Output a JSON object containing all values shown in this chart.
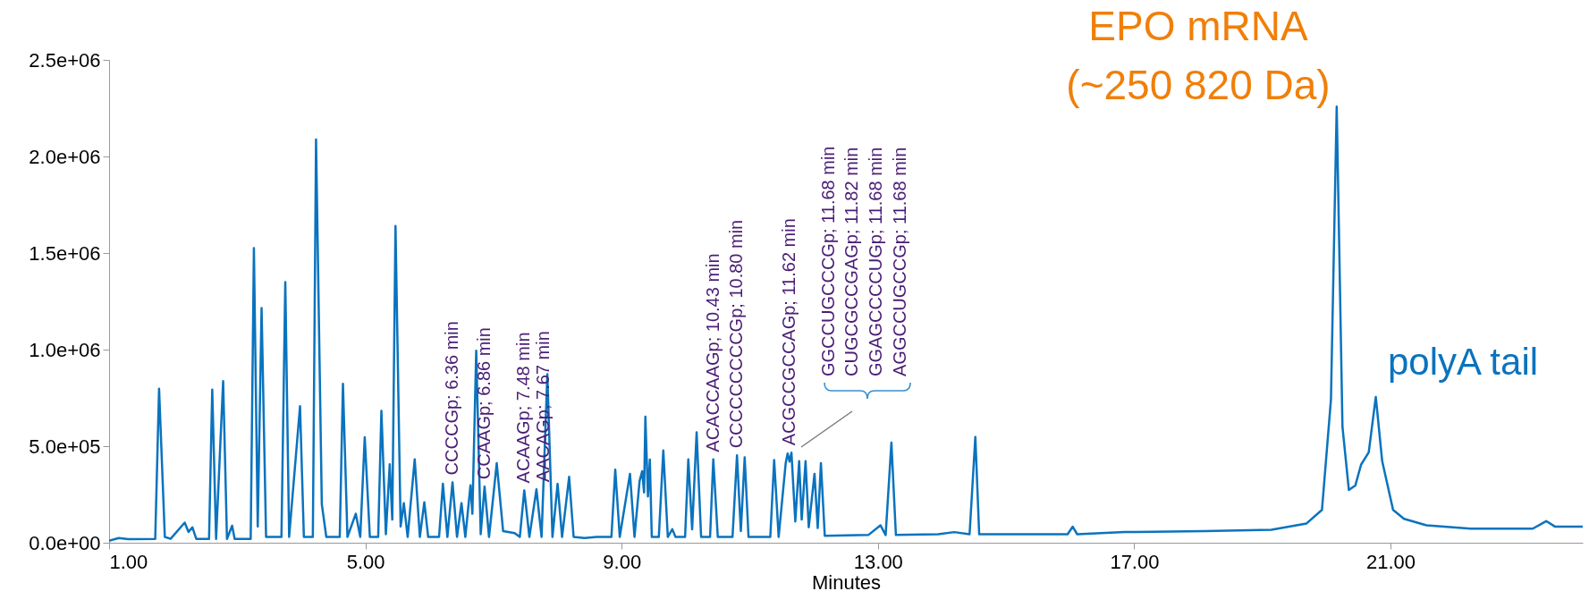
{
  "chart_data": {
    "type": "line",
    "xlabel": "Minutes",
    "xlim": [
      1,
      24
    ],
    "ylim": [
      0,
      2500000
    ],
    "xticks": [
      {
        "value": 1,
        "label": "1.00"
      },
      {
        "value": 5,
        "label": "5.00"
      },
      {
        "value": 9,
        "label": "9.00"
      },
      {
        "value": 13,
        "label": "13.00"
      },
      {
        "value": 17,
        "label": "17.00"
      },
      {
        "value": 21,
        "label": "21.00"
      }
    ],
    "yticks": [
      {
        "value": 0,
        "label": "0.0e+00"
      },
      {
        "value": 500000,
        "label": "5.0e+05"
      },
      {
        "value": 1000000,
        "label": "1.0e+06"
      },
      {
        "value": 1500000,
        "label": "1.5e+06"
      },
      {
        "value": 2000000,
        "label": "2.0e+06"
      },
      {
        "value": 2500000,
        "label": "2.5e+06"
      }
    ],
    "x": [
      1.0,
      1.15,
      1.3,
      1.72,
      1.78,
      1.87,
      1.96,
      2.18,
      2.24,
      2.3,
      2.36,
      2.56,
      2.61,
      2.67,
      2.78,
      2.84,
      2.92,
      2.96,
      3.21,
      3.26,
      3.32,
      3.38,
      3.45,
      3.69,
      3.75,
      3.81,
      3.98,
      4.04,
      4.18,
      4.23,
      4.32,
      4.39,
      4.6,
      4.65,
      4.72,
      4.85,
      4.92,
      4.99,
      5.07,
      5.2,
      5.25,
      5.32,
      5.38,
      5.42,
      5.47,
      5.55,
      5.6,
      5.66,
      5.77,
      5.85,
      5.92,
      5.98,
      6.15,
      6.21,
      6.28,
      6.36,
      6.43,
      6.5,
      6.56,
      6.64,
      6.67,
      6.73,
      6.8,
      6.86,
      6.93,
      7.05,
      7.15,
      7.33,
      7.41,
      7.48,
      7.56,
      7.67,
      7.75,
      7.84,
      7.92,
      8.0,
      8.07,
      8.18,
      8.25,
      8.42,
      8.61,
      8.84,
      8.9,
      8.97,
      9.13,
      9.2,
      9.28,
      9.32,
      9.35,
      9.37,
      9.41,
      9.44,
      9.47,
      9.58,
      9.65,
      9.72,
      9.79,
      9.84,
      9.99,
      10.04,
      10.1,
      10.17,
      10.24,
      10.38,
      10.43,
      10.5,
      10.73,
      10.8,
      10.86,
      10.92,
      10.98,
      11.32,
      11.38,
      11.45,
      11.56,
      11.59,
      11.62,
      11.65,
      11.71,
      11.77,
      11.81,
      11.87,
      11.92,
      12.01,
      12.06,
      12.11,
      12.17,
      12.85,
      13.04,
      13.12,
      13.21,
      13.28,
      13.94,
      14.19,
      14.43,
      14.52,
      14.58,
      15.96,
      16.04,
      16.11,
      16.85,
      18.1,
      19.14,
      19.69,
      19.93,
      20.07,
      20.16,
      20.25,
      20.35,
      20.45,
      20.54,
      20.66,
      20.77,
      20.87,
      21.04,
      21.21,
      21.56,
      22.25,
      23.22,
      23.43,
      23.57,
      24.0
    ],
    "series": [
      {
        "color": "#0a73be",
        "values": [
          10000,
          24000,
          18000,
          20000,
          797000,
          30000,
          20000,
          104000,
          56000,
          80000,
          20000,
          20000,
          793000,
          20000,
          837000,
          20000,
          88000,
          20000,
          20000,
          1526000,
          84000,
          1215000,
          30000,
          30000,
          1349000,
          30000,
          707000,
          30000,
          30000,
          2088000,
          200000,
          30000,
          30000,
          823000,
          30000,
          150000,
          30000,
          546000,
          30000,
          30000,
          683000,
          44000,
          406000,
          120000,
          1640000,
          84000,
          205000,
          30000,
          432000,
          30000,
          210000,
          30000,
          30000,
          305000,
          30000,
          313000,
          30000,
          205000,
          30000,
          297000,
          150000,
          994000,
          44000,
          291000,
          30000,
          412000,
          60000,
          50000,
          30000,
          271000,
          30000,
          277000,
          30000,
          873000,
          30000,
          305000,
          30000,
          341000,
          30000,
          24000,
          30000,
          30000,
          378000,
          30000,
          357000,
          30000,
          320000,
          370000,
          260000,
          653000,
          240000,
          430000,
          30000,
          30000,
          478000,
          30000,
          70000,
          30000,
          30000,
          432000,
          70000,
          572000,
          30000,
          30000,
          432000,
          30000,
          30000,
          452000,
          60000,
          442000,
          30000,
          30000,
          428000,
          30000,
          412000,
          462000,
          420000,
          466000,
          110000,
          422000,
          120000,
          422000,
          80000,
          357000,
          76000,
          412000,
          36000,
          40000,
          90000,
          40000,
          518000,
          40000,
          44000,
          55000,
          44000,
          548000,
          44000,
          44000,
          83000,
          44000,
          55000,
          60000,
          67000,
          100000,
          170000,
          740000,
          2258000,
          600000,
          273000,
          296000,
          404000,
          468000,
          755000,
          422000,
          170000,
          124000,
          90000,
          73000,
          73000,
          112000,
          83000,
          83000
        ]
      }
    ],
    "annotations": [
      {
        "text": "CCCCGp; 6.36 min",
        "x": 6.36,
        "y": 313000
      },
      {
        "text": "CCAAGp; 6.86 min",
        "x": 6.86,
        "y": 291000
      },
      {
        "text": "ACAAGp; 7.48 min",
        "x": 7.48,
        "y": 271000
      },
      {
        "text": "AACAGp; 7.67 min",
        "x": 7.67,
        "y": 277000
      },
      {
        "text": "ACACCAAGp; 10.43 min",
        "x": 10.43,
        "y": 432000
      },
      {
        "text": "CCCCCCCCCGp; 10.80 min",
        "x": 10.8,
        "y": 452000
      },
      {
        "text": "ACGCCGCCAGp; 11.62 min",
        "x": 11.62,
        "y": 466000
      },
      "GGCCUGCCCGp; 11.68 min",
      "CUGCGCCGAGp; 11.82 min",
      "GGAGCCCCUGp; 11.68 min",
      "AGGCCUGCCGp; 11.68 min",
      "EPO mRNA",
      "(~250 820 Da)",
      "polyA tail"
    ]
  }
}
